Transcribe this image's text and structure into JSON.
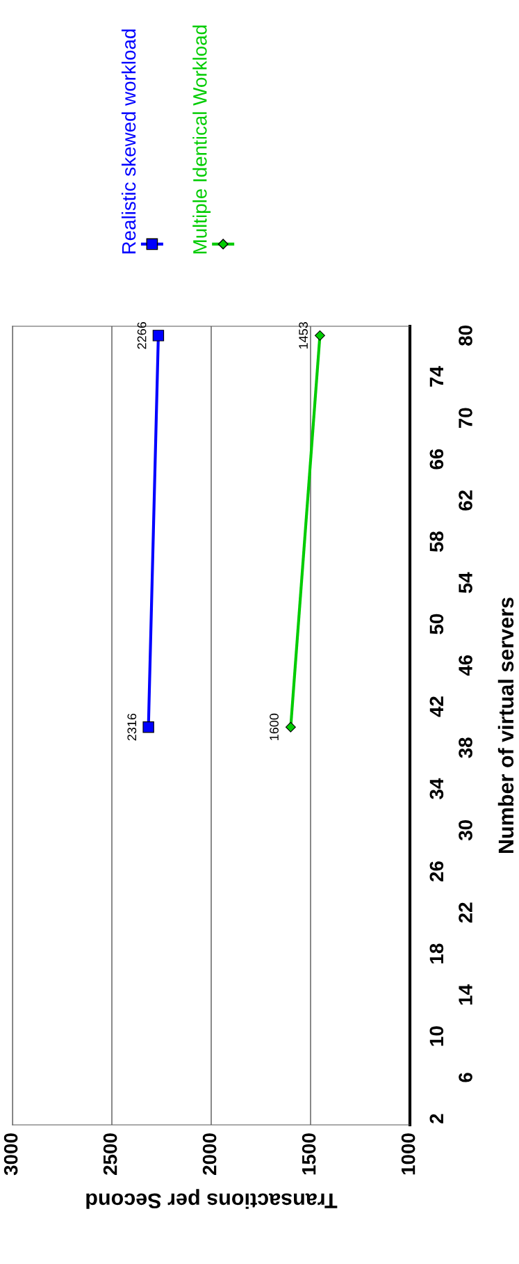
{
  "chart_data": {
    "type": "line",
    "orientation": "horizontal",
    "ylabel": "Number of virtual servers",
    "xlabel": "Transactions per Second",
    "categories": [
      "80",
      null,
      "74",
      null,
      "70",
      null,
      "66",
      null,
      "62",
      null,
      "58",
      null,
      "54",
      null,
      "50",
      null,
      "46",
      null,
      "42",
      null,
      "38",
      null,
      "34",
      null,
      "30",
      null,
      "26",
      null,
      "22",
      null,
      "18",
      null,
      "14",
      null,
      "10",
      null,
      "6",
      null,
      "2"
    ],
    "series": [
      {
        "name": "Realistic skewed workload",
        "color": "#0000ff",
        "marker": "square",
        "values": [
          2266,
          null,
          null,
          null,
          null,
          null,
          null,
          null,
          null,
          null,
          null,
          null,
          null,
          null,
          null,
          null,
          null,
          null,
          null,
          2316,
          null,
          null,
          null,
          null,
          null,
          null,
          null,
          null,
          null,
          null,
          null,
          null,
          null,
          null,
          null,
          null,
          null,
          null,
          null
        ]
      },
      {
        "name": "Multiple Identical Workload",
        "color": "#00cc00",
        "marker": "diamond",
        "values": [
          1453,
          null,
          null,
          null,
          null,
          null,
          null,
          null,
          null,
          null,
          null,
          null,
          null,
          null,
          null,
          null,
          null,
          null,
          null,
          1600,
          null,
          null,
          null,
          null,
          null,
          null,
          null,
          null,
          null,
          null,
          null,
          null,
          null,
          null,
          null,
          null,
          null,
          null,
          null
        ]
      }
    ],
    "xlim": [
      3000,
      1000
    ],
    "xticks": [
      1000,
      1500,
      2000,
      2500,
      3000
    ],
    "grid": "x",
    "legend": "top",
    "data_labels": true
  }
}
